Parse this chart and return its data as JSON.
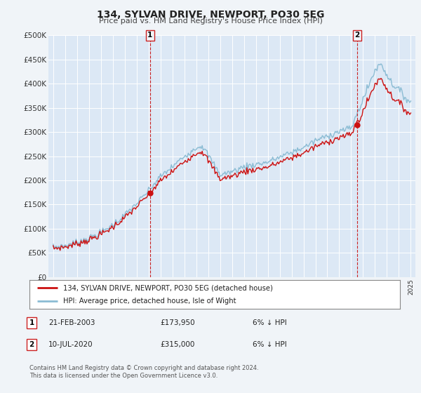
{
  "title": "134, SYLVAN DRIVE, NEWPORT, PO30 5EG",
  "subtitle": "Price paid vs. HM Land Registry's House Price Index (HPI)",
  "background_color": "#f0f4f8",
  "plot_bg_color": "#dce8f5",
  "grid_color": "#c8d8e8",
  "ylim": [
    0,
    500000
  ],
  "yticks": [
    0,
    50000,
    100000,
    150000,
    200000,
    250000,
    300000,
    350000,
    400000,
    450000,
    500000
  ],
  "ytick_labels": [
    "£0",
    "£50K",
    "£100K",
    "£150K",
    "£200K",
    "£250K",
    "£300K",
    "£350K",
    "£400K",
    "£450K",
    "£500K"
  ],
  "year_start": 1995,
  "year_end": 2025,
  "sale1_t": 2003.125,
  "sale1_price": 173950,
  "sale2_t": 2020.5,
  "sale2_price": 315000,
  "legend_line1": "134, SYLVAN DRIVE, NEWPORT, PO30 5EG (detached house)",
  "legend_line2": "HPI: Average price, detached house, Isle of Wight",
  "table_row1": [
    "1",
    "21-FEB-2003",
    "£173,950",
    "6% ↓ HPI"
  ],
  "table_row2": [
    "2",
    "10-JUL-2020",
    "£315,000",
    "6% ↓ HPI"
  ],
  "footer1": "Contains HM Land Registry data © Crown copyright and database right 2024.",
  "footer2": "This data is licensed under the Open Government Licence v3.0.",
  "hpi_color": "#8bbcd4",
  "price_color": "#cc1111",
  "marker_color": "#cc1111",
  "vline_color": "#cc2222",
  "box_border_color": "#cc2222",
  "waypoints_t": [
    1995,
    1996,
    1997,
    1998,
    1999,
    2000,
    2001,
    2002,
    2003,
    2004,
    2005,
    2006,
    2007,
    2007.5,
    2008,
    2009,
    2010,
    2011,
    2012,
    2013,
    2014,
    2015,
    2016,
    2017,
    2018,
    2019,
    2020,
    2021,
    2022,
    2022.5,
    2023,
    2023.5,
    2024,
    2024.5,
    2025
  ],
  "waypoints_v": [
    62000,
    65000,
    72000,
    80000,
    92000,
    108000,
    128000,
    152000,
    178000,
    208000,
    228000,
    250000,
    268000,
    272000,
    252000,
    212000,
    218000,
    228000,
    233000,
    238000,
    248000,
    258000,
    268000,
    282000,
    292000,
    302000,
    308000,
    368000,
    428000,
    442000,
    418000,
    398000,
    388000,
    372000,
    362000
  ]
}
